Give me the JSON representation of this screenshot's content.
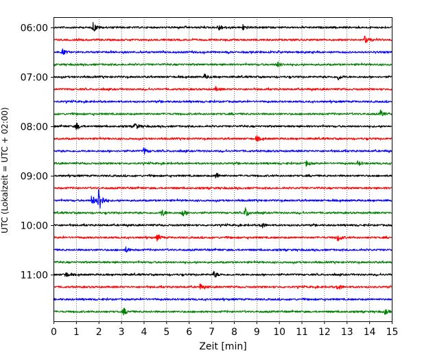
{
  "chart_data": {
    "type": "line",
    "title": "",
    "xlabel": "Zeit  [min]",
    "ylabel": "UTC (Lokalzeit = UTC + 02:00)",
    "xlim": [
      0,
      15
    ],
    "x_ticks": [
      "0",
      "1",
      "2",
      "3",
      "4",
      "5",
      "6",
      "7",
      "8",
      "9",
      "10",
      "11",
      "12",
      "13",
      "14",
      "15"
    ],
    "y_ticks": [
      "06:00",
      "07:00",
      "08:00",
      "09:00",
      "10:00",
      "11:00"
    ],
    "grid": "vertical dotted lines at each minute",
    "trace_colors": [
      "#000000",
      "#ff0000",
      "#0000ff",
      "#008000"
    ],
    "series": [
      {
        "start": "06:00",
        "color": "#000000",
        "events": [
          {
            "t": 1.75,
            "amp": 8
          },
          {
            "t": 7.3,
            "amp": 6
          },
          {
            "t": 8.4,
            "amp": 4
          }
        ]
      },
      {
        "start": "06:15",
        "color": "#ff0000",
        "events": [
          {
            "t": 13.8,
            "amp": 6
          }
        ]
      },
      {
        "start": "06:30",
        "color": "#0000ff",
        "events": [
          {
            "t": 0.4,
            "amp": 4
          }
        ]
      },
      {
        "start": "06:45",
        "color": "#008000",
        "events": [
          {
            "t": 9.9,
            "amp": 5
          }
        ]
      },
      {
        "start": "07:00",
        "color": "#000000",
        "events": [
          {
            "t": 6.7,
            "amp": 4
          },
          {
            "t": 12.6,
            "amp": 5
          }
        ]
      },
      {
        "start": "07:15",
        "color": "#ff0000",
        "events": [
          {
            "t": 7.2,
            "amp": 3
          }
        ]
      },
      {
        "start": "07:30",
        "color": "#0000ff",
        "events": []
      },
      {
        "start": "07:45",
        "color": "#008000",
        "events": [
          {
            "t": 14.5,
            "amp": 5
          }
        ]
      },
      {
        "start": "08:00",
        "color": "#000000",
        "events": [
          {
            "t": 1.0,
            "amp": 6
          },
          {
            "t": 3.6,
            "amp": 6
          }
        ]
      },
      {
        "start": "08:15",
        "color": "#ff0000",
        "events": [
          {
            "t": 9.0,
            "amp": 4
          }
        ]
      },
      {
        "start": "08:30",
        "color": "#0000ff",
        "events": [
          {
            "t": 4.0,
            "amp": 5
          }
        ]
      },
      {
        "start": "08:45",
        "color": "#008000",
        "events": [
          {
            "t": 11.2,
            "amp": 4
          },
          {
            "t": 13.5,
            "amp": 4
          }
        ]
      },
      {
        "start": "09:00",
        "color": "#000000",
        "events": [
          {
            "t": 7.2,
            "amp": 5
          }
        ]
      },
      {
        "start": "09:15",
        "color": "#ff0000",
        "events": []
      },
      {
        "start": "09:30",
        "color": "#0000ff",
        "events": [
          {
            "t": 1.7,
            "amp": 9
          },
          {
            "t": 2.0,
            "amp": 22
          }
        ]
      },
      {
        "start": "09:45",
        "color": "#008000",
        "events": [
          {
            "t": 4.8,
            "amp": 6
          },
          {
            "t": 5.7,
            "amp": 6
          },
          {
            "t": 8.5,
            "amp": 8
          }
        ]
      },
      {
        "start": "10:00",
        "color": "#000000",
        "events": [
          {
            "t": 9.2,
            "amp": 5
          }
        ]
      },
      {
        "start": "10:15",
        "color": "#ff0000",
        "events": [
          {
            "t": 4.6,
            "amp": 5
          },
          {
            "t": 12.6,
            "amp": 6
          }
        ]
      },
      {
        "start": "10:30",
        "color": "#0000ff",
        "events": [
          {
            "t": 3.2,
            "amp": 4
          }
        ]
      },
      {
        "start": "10:45",
        "color": "#008000",
        "events": []
      },
      {
        "start": "11:00",
        "color": "#000000",
        "events": [
          {
            "t": 0.5,
            "amp": 5
          },
          {
            "t": 7.1,
            "amp": 5
          }
        ]
      },
      {
        "start": "11:15",
        "color": "#ff0000",
        "events": [
          {
            "t": 6.5,
            "amp": 4
          },
          {
            "t": 12.6,
            "amp": 5
          }
        ]
      },
      {
        "start": "11:30",
        "color": "#0000ff",
        "events": []
      },
      {
        "start": "11:45",
        "color": "#008000",
        "events": [
          {
            "t": 3.1,
            "amp": 5
          },
          {
            "t": 14.7,
            "amp": 4
          }
        ]
      }
    ]
  }
}
